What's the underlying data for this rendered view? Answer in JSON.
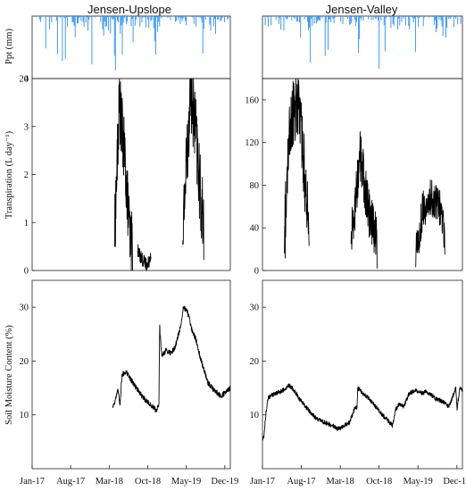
{
  "chart_data": [
    {
      "panel": "upslope-precipitation",
      "type": "bar",
      "title": "Jensen-Upslope",
      "ylabel": "Ppt (mm)",
      "ylim": [
        20,
        0
      ],
      "yticks": [
        20
      ],
      "color": "#2a8ff0",
      "x_range": [
        2017.0,
        2020.0
      ],
      "segments": [
        [
          2017.0,
          2020.0
        ]
      ],
      "seed": 11
    },
    {
      "panel": "upslope-transpiration",
      "type": "line",
      "ylabel": "Transpiration (L day⁻¹)",
      "ylim": [
        0,
        4
      ],
      "yticks": [
        0,
        1,
        2,
        3,
        4
      ],
      "ytick_labels": [
        "0",
        "1",
        "2",
        "3",
        "4"
      ],
      "x_range": [
        2017.0,
        2020.0
      ],
      "series": [
        {
          "x": [
            2018.25,
            2018.32,
            2018.4,
            2018.48,
            2018.52
          ],
          "y": [
            0.8,
            3.5,
            2.4,
            0.7,
            0.6
          ],
          "noise": 0.7
        },
        {
          "x": [
            2018.6,
            2018.68,
            2018.75,
            2018.8
          ],
          "y": [
            0.4,
            0.2,
            0.1,
            0.4
          ],
          "noise": 0.15
        },
        {
          "x": [
            2019.28,
            2019.3,
            2019.4,
            2019.48,
            2019.55,
            2019.6
          ],
          "y": [
            0.0,
            1.4,
            3.8,
            2.8,
            1.5,
            1.0
          ],
          "noise": 0.8
        }
      ]
    },
    {
      "panel": "upslope-soil-moisture",
      "type": "line",
      "ylabel": "Soil Moisture Content (%)",
      "ylim": [
        0,
        35
      ],
      "yticks": [
        10,
        20,
        30
      ],
      "x_range": [
        2017.0,
        2020.0
      ],
      "xticks": [
        {
          "label": "Jan-17",
          "x": 2017.0
        },
        {
          "label": "Aug-17",
          "x": 2017.583
        },
        {
          "label": "Mar-18",
          "x": 2018.167
        },
        {
          "label": "Oct-18",
          "x": 2018.75
        },
        {
          "label": "May-19",
          "x": 2019.333
        },
        {
          "label": "Dec-19",
          "x": 2019.917
        }
      ],
      "series": [
        {
          "x": [
            2018.22,
            2018.25,
            2018.3,
            2018.33,
            2018.36,
            2018.42,
            2018.5,
            2018.58,
            2018.66,
            2018.74,
            2018.82,
            2018.88,
            2018.92,
            2018.93,
            2018.96,
            2019.03,
            2019.1,
            2019.16,
            2019.24,
            2019.29,
            2019.35,
            2019.38,
            2019.41,
            2019.48,
            2019.56,
            2019.66,
            2019.76,
            2019.86,
            2019.96,
            2020.0
          ],
          "y": [
            11.5,
            12.5,
            14.5,
            12.0,
            17.5,
            18.0,
            16.5,
            15.0,
            13.5,
            12.5,
            11.5,
            10.8,
            12.0,
            26.5,
            21.0,
            22.0,
            21.5,
            22.5,
            26.0,
            30.0,
            29.0,
            28.0,
            26.0,
            24.0,
            20.0,
            16.0,
            14.5,
            13.5,
            14.5,
            15.0
          ],
          "noise": 0.5
        }
      ]
    },
    {
      "panel": "valley-precipitation",
      "type": "bar",
      "title": "Jensen-Valley",
      "ylim": [
        20,
        0
      ],
      "color": "#2a8ff0",
      "x_range": [
        2017.0,
        2020.0
      ],
      "segments": [
        [
          2017.0,
          2020.0
        ]
      ],
      "seed": 29
    },
    {
      "panel": "valley-transpiration",
      "type": "line",
      "ylim": [
        0,
        180
      ],
      "yticks": [
        0,
        40,
        80,
        120,
        160
      ],
      "x_range": [
        2017.0,
        2020.0
      ],
      "series": [
        {
          "x": [
            2017.33,
            2017.4,
            2017.45,
            2017.52,
            2017.6,
            2017.66,
            2017.7
          ],
          "y": [
            30,
            120,
            150,
            160,
            120,
            70,
            35
          ],
          "noise": 35
        },
        {
          "x": [
            2018.33,
            2018.4,
            2018.46,
            2018.52,
            2018.58,
            2018.66,
            2018.72
          ],
          "y": [
            30,
            70,
            110,
            85,
            60,
            40,
            25
          ],
          "noise": 25
        },
        {
          "x": [
            2019.3,
            2019.4,
            2019.52,
            2019.6,
            2019.68,
            2019.74
          ],
          "y": [
            15,
            55,
            70,
            65,
            55,
            30
          ],
          "noise": 18
        }
      ]
    },
    {
      "panel": "valley-soil-moisture",
      "type": "line",
      "ylim": [
        0,
        35
      ],
      "yticks": [
        10,
        20,
        30
      ],
      "x_range": [
        2017.0,
        2020.0
      ],
      "xticks": [
        {
          "label": "Jan-17",
          "x": 2017.0
        },
        {
          "label": "Aug-17",
          "x": 2017.583
        },
        {
          "label": "Mar-18",
          "x": 2018.167
        },
        {
          "label": "Oct-18",
          "x": 2018.75
        },
        {
          "label": "May-19",
          "x": 2019.333
        },
        {
          "label": "Dec-19",
          "x": 2019.917
        }
      ],
      "series": [
        {
          "x": [
            2017.0,
            2017.02,
            2017.05,
            2017.08,
            2017.12,
            2017.2,
            2017.3,
            2017.4,
            2017.48,
            2017.55,
            2017.65,
            2017.75,
            2017.85,
            2017.95,
            2018.05,
            2018.12,
            2018.18,
            2018.22,
            2018.3,
            2018.38,
            2018.42,
            2018.43,
            2018.5,
            2018.6,
            2018.7,
            2018.8,
            2018.88,
            2018.95,
            2019.0,
            2019.05,
            2019.12,
            2019.2,
            2019.3,
            2019.4,
            2019.45,
            2019.5,
            2019.55,
            2019.6,
            2019.7,
            2019.8,
            2019.9,
            2019.92,
            2019.96,
            2020.0
          ],
          "y": [
            5.5,
            6.0,
            10.0,
            13.0,
            13.5,
            14.0,
            14.5,
            15.5,
            14.5,
            13.0,
            11.5,
            10.0,
            9.0,
            8.5,
            8.0,
            7.5,
            7.5,
            8.0,
            8.5,
            11.0,
            11.5,
            15.0,
            14.0,
            13.0,
            11.5,
            10.0,
            9.0,
            8.0,
            11.0,
            12.0,
            11.5,
            14.0,
            14.5,
            14.0,
            14.5,
            14.0,
            13.5,
            13.0,
            12.5,
            11.5,
            15.0,
            11.0,
            15.0,
            14.5
          ],
          "noise": 0.4
        }
      ]
    }
  ]
}
